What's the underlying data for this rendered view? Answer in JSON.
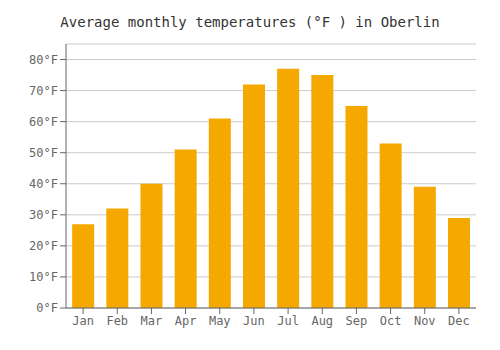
{
  "chart_data": {
    "type": "bar",
    "title": "Average monthly temperatures (°F ) in Oberlin",
    "categories": [
      "Jan",
      "Feb",
      "Mar",
      "Apr",
      "May",
      "Jun",
      "Jul",
      "Aug",
      "Sep",
      "Oct",
      "Nov",
      "Dec"
    ],
    "values": [
      27,
      32,
      40,
      51,
      61,
      72,
      77,
      75,
      65,
      53,
      39,
      29
    ],
    "color": "#F5A800",
    "ylim": [
      0,
      85
    ],
    "yticks": [
      {
        "value": 0,
        "label": "0°F"
      },
      {
        "value": 10,
        "label": "10°F"
      },
      {
        "value": 20,
        "label": "20°F"
      },
      {
        "value": 30,
        "label": "30°F"
      },
      {
        "value": 40,
        "label": "40°F"
      },
      {
        "value": 50,
        "label": "50°F"
      },
      {
        "value": 60,
        "label": "60°F"
      },
      {
        "value": 70,
        "label": "70°F"
      },
      {
        "value": 80,
        "label": "80°F"
      }
    ],
    "grid": true
  }
}
